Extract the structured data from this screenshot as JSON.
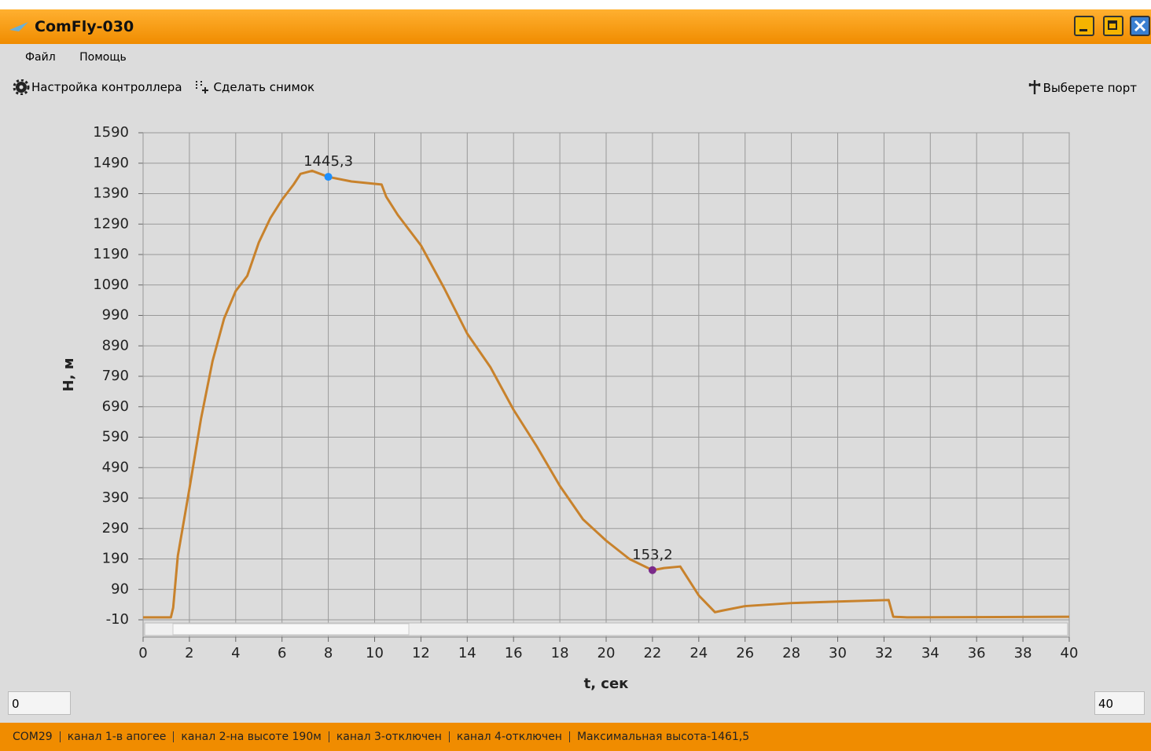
{
  "window": {
    "title": "ComFly-030"
  },
  "menu": [
    "Файл",
    "Помощь"
  ],
  "toolbar": [
    "Настройка контроллера",
    "Сделать снимок"
  ],
  "port": "Выберете порт",
  "range_inputs": [
    "0",
    "40"
  ],
  "status": [
    "COM29",
    "канал 1-в апогее",
    "канал 2-на высоте 190м",
    "канал 3-отключен",
    "канал 4-отключен",
    "Максимальная высота-1461,5"
  ],
  "chart_data": {
    "type": "line",
    "xlabel": "t, сек",
    "ylabel": "H, м",
    "x": [
      0,
      1.2,
      1.3,
      1.5,
      2,
      2.5,
      3,
      3.5,
      4,
      4.5,
      5,
      5.5,
      6,
      6.5,
      6.8,
      7.3,
      8,
      9,
      10.3,
      10.5,
      11,
      12,
      13,
      14,
      15,
      16,
      17,
      18,
      19,
      20,
      21,
      22,
      22.5,
      23.2,
      24,
      24.7,
      25,
      26,
      28,
      30,
      32.2,
      32.4,
      33,
      40
    ],
    "values": [
      -2,
      -2,
      30,
      200,
      420,
      650,
      840,
      980,
      1070,
      1120,
      1230,
      1310,
      1370,
      1420,
      1455,
      1465,
      1445,
      1430,
      1420,
      1380,
      1320,
      1220,
      1080,
      930,
      820,
      680,
      560,
      430,
      320,
      250,
      190,
      153,
      160,
      165,
      70,
      15,
      20,
      35,
      45,
      50,
      55,
      0,
      -2,
      0
    ],
    "color": "#c8822c",
    "markers": {
      "x": [
        8,
        22
      ],
      "values": [
        1445.3,
        153.2
      ],
      "value_labels": [
        "1445,3",
        "153,2"
      ],
      "colors": [
        "#1e90ff",
        "#7b2a8a"
      ]
    },
    "xlim": [
      0,
      40
    ],
    "xticks": [
      0,
      2,
      4,
      6,
      8,
      10,
      12,
      14,
      16,
      18,
      20,
      22,
      24,
      26,
      28,
      30,
      32,
      34,
      36,
      38,
      40
    ],
    "ylim": [
      -10,
      1590
    ],
    "yticks": [
      -10,
      90,
      190,
      290,
      390,
      490,
      590,
      690,
      790,
      890,
      990,
      1090,
      1190,
      1290,
      1390,
      1490,
      1590
    ],
    "grid": true
  }
}
